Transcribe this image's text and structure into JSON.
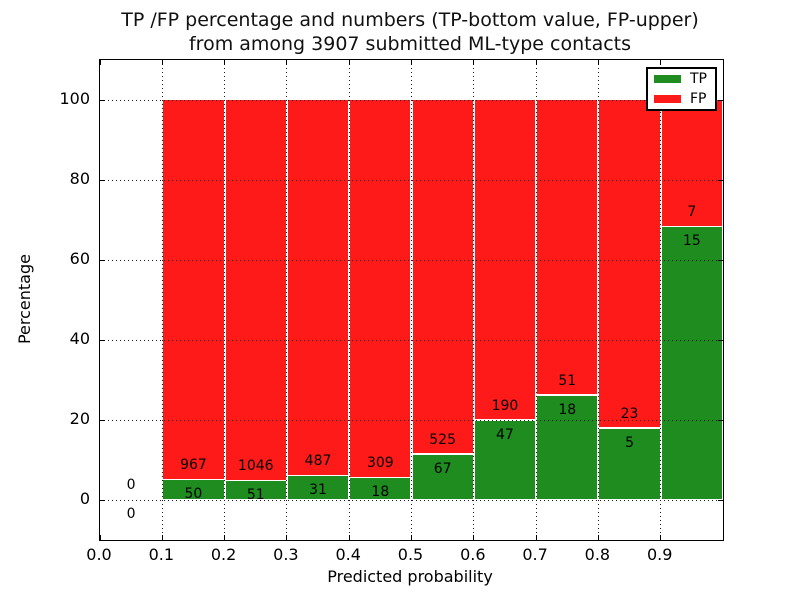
{
  "figure": {
    "title_line1": "TP /FP percentage and numbers (TP-bottom value, FP-upper)",
    "title_line2": "from among 3907 submitted ML-type contacts"
  },
  "axes": {
    "xlabel": "Predicted probability",
    "ylabel": "Percentage",
    "x_ticks": [
      "0.0",
      "0.1",
      "0.2",
      "0.3",
      "0.4",
      "0.5",
      "0.6",
      "0.7",
      "0.8",
      "0.9"
    ],
    "x_tick_values": [
      0.0,
      0.1,
      0.2,
      0.3,
      0.4,
      0.5,
      0.6,
      0.7,
      0.8,
      0.9
    ],
    "y_ticks": [
      "0",
      "20",
      "40",
      "60",
      "80",
      "100"
    ],
    "y_tick_values": [
      0,
      20,
      40,
      60,
      80,
      100
    ]
  },
  "legend": {
    "items": [
      {
        "label": "TP",
        "color": "#1e8c1e"
      },
      {
        "label": "FP",
        "color": "#ff1a1a"
      }
    ]
  },
  "colors": {
    "tp_green": "#1e8c1e",
    "fp_red": "#ff1a1a",
    "grid": "#1a1a1a",
    "background": "#ffffff"
  },
  "chart_data": {
    "type": "bar",
    "stacked": true,
    "orientation": "vertical",
    "title": "TP /FP percentage and numbers (TP-bottom value, FP-upper) from among 3907 submitted ML-type contacts",
    "xlabel": "Predicted probability",
    "ylabel": "Percentage",
    "xlim": [
      0.0,
      1.0
    ],
    "ylim": [
      -10,
      110
    ],
    "grid": "dotted",
    "legend_position": "upper right",
    "total_contacts": 3907,
    "bin_width": 0.1,
    "bins": [
      {
        "range": [
          0.0,
          0.1
        ],
        "tp": 0,
        "fp": 0,
        "tp_pct": 0,
        "fp_pct": 0,
        "has_bar": false
      },
      {
        "range": [
          0.1,
          0.2
        ],
        "tp": 50,
        "fp": 967,
        "tp_pct": 4.92,
        "fp_pct": 95.08,
        "has_bar": true
      },
      {
        "range": [
          0.2,
          0.3
        ],
        "tp": 51,
        "fp": 1046,
        "tp_pct": 4.65,
        "fp_pct": 95.35,
        "has_bar": true
      },
      {
        "range": [
          0.3,
          0.4
        ],
        "tp": 31,
        "fp": 487,
        "tp_pct": 5.98,
        "fp_pct": 94.02,
        "has_bar": true
      },
      {
        "range": [
          0.4,
          0.5
        ],
        "tp": 18,
        "fp": 309,
        "tp_pct": 5.5,
        "fp_pct": 94.5,
        "has_bar": true
      },
      {
        "range": [
          0.5,
          0.6
        ],
        "tp": 67,
        "fp": 525,
        "tp_pct": 11.32,
        "fp_pct": 88.68,
        "has_bar": true
      },
      {
        "range": [
          0.6,
          0.7
        ],
        "tp": 47,
        "fp": 190,
        "tp_pct": 19.83,
        "fp_pct": 80.17,
        "has_bar": true
      },
      {
        "range": [
          0.7,
          0.8
        ],
        "tp": 18,
        "fp": 51,
        "tp_pct": 26.09,
        "fp_pct": 73.91,
        "has_bar": true
      },
      {
        "range": [
          0.8,
          0.9
        ],
        "tp": 5,
        "fp": 23,
        "tp_pct": 17.86,
        "fp_pct": 82.14,
        "has_bar": true
      },
      {
        "range": [
          0.9,
          1.0
        ],
        "tp": 15,
        "fp": 7,
        "tp_pct": 68.18,
        "fp_pct": 31.82,
        "has_bar": true
      }
    ],
    "series": [
      {
        "name": "TP",
        "color": "#1e8c1e",
        "counts": [
          0,
          50,
          51,
          31,
          18,
          67,
          47,
          18,
          5,
          15
        ],
        "values_pct": [
          0,
          4.92,
          4.65,
          5.98,
          5.5,
          11.32,
          19.83,
          26.09,
          17.86,
          68.18
        ]
      },
      {
        "name": "FP",
        "color": "#ff1a1a",
        "counts": [
          0,
          967,
          1046,
          487,
          309,
          525,
          190,
          51,
          23,
          7
        ],
        "values_pct": [
          0,
          95.08,
          95.35,
          94.02,
          94.5,
          88.68,
          80.17,
          73.91,
          82.14,
          31.82
        ]
      }
    ]
  }
}
